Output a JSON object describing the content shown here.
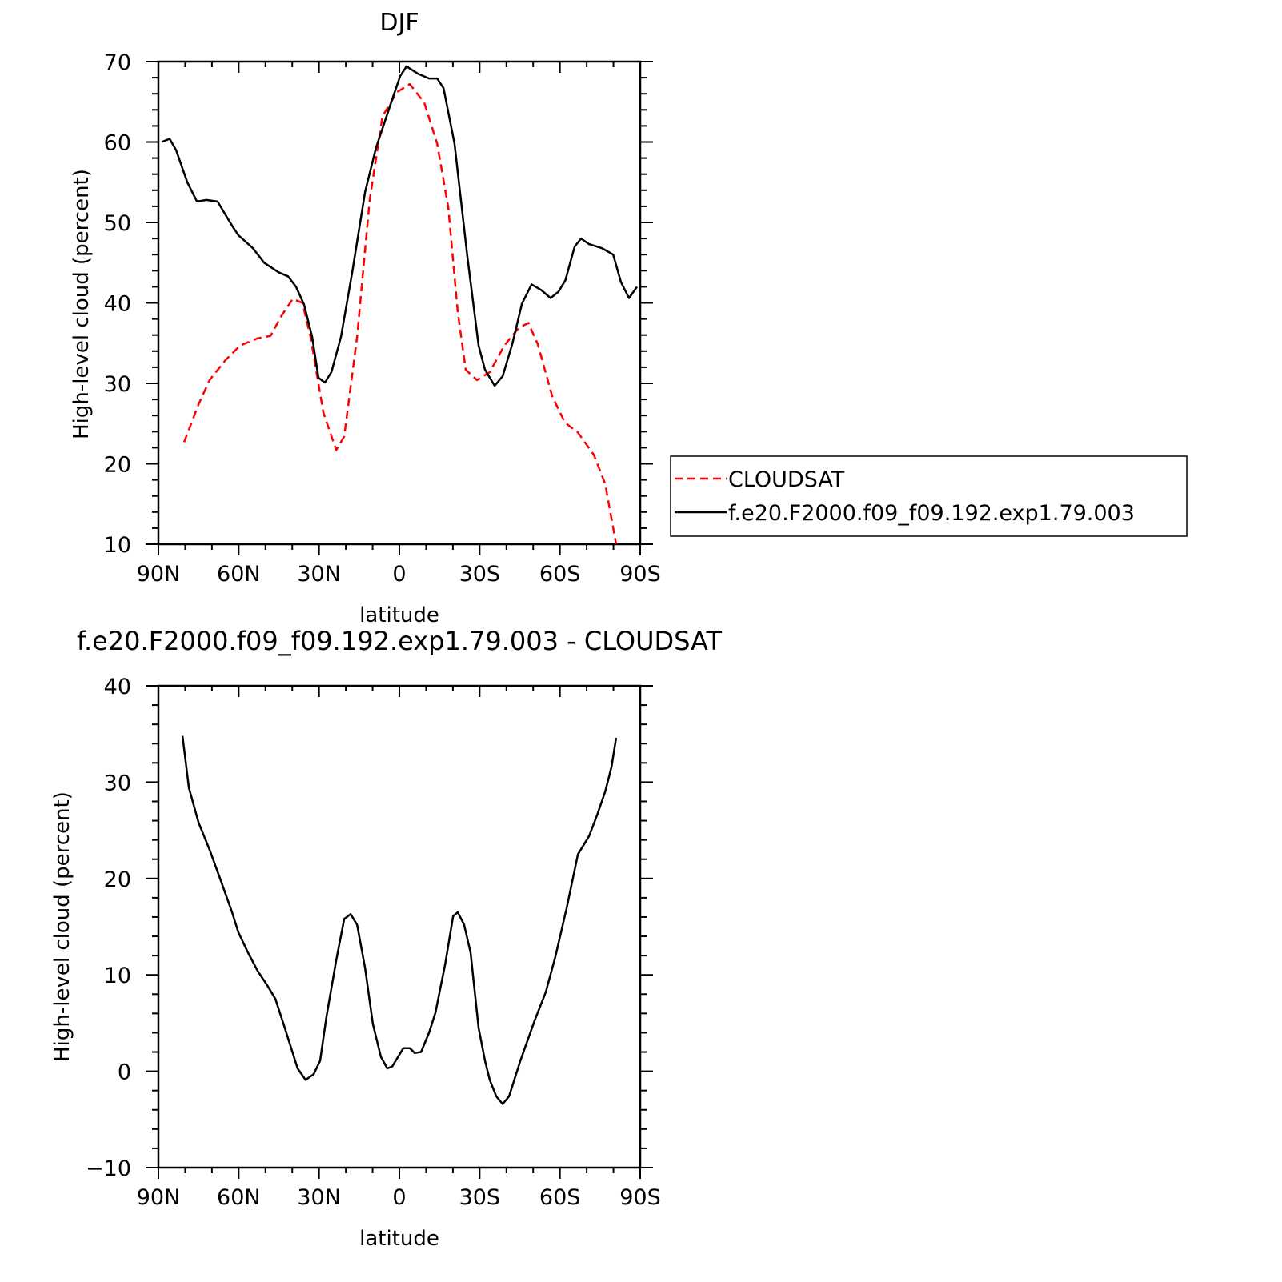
{
  "chart_data": [
    {
      "type": "line",
      "title": "DJF",
      "xlabel": "latitude",
      "ylabel": "High-level cloud (percent)",
      "xlim": [
        90,
        -90
      ],
      "ylim": [
        10,
        70
      ],
      "x_ticks": [
        90,
        60,
        30,
        0,
        -30,
        -60,
        -90
      ],
      "x_tick_labels": [
        "90N",
        "60N",
        "30N",
        "0",
        "30S",
        "60S",
        "90S"
      ],
      "y_ticks": [
        10,
        20,
        30,
        40,
        50,
        60,
        70
      ],
      "y_tick_labels": [
        "10",
        "20",
        "30",
        "40",
        "50",
        "60",
        "70"
      ],
      "grid": false,
      "legend_placement": "right",
      "series": [
        {
          "name": "CLOUDSAT",
          "color": "#ff0000",
          "dash": "dashed",
          "x": [
            80.4,
            75.0,
            70.9,
            64.9,
            59.5,
            52.9,
            48.1,
            44.0,
            39.8,
            36.2,
            33.2,
            28.4,
            23.6,
            20.6,
            15.8,
            11.1,
            6.3,
            0.9,
            -3.9,
            -9.3,
            -14.1,
            -18.3,
            -21.8,
            -24.8,
            -29.0,
            -33.8,
            -39.2,
            -44.6,
            -48.2,
            -51.7,
            -57.1,
            -61.9,
            -66.7,
            -72.7,
            -76.9,
            -81.0
          ],
          "y": [
            22.7,
            27.4,
            30.4,
            32.9,
            34.7,
            35.6,
            35.9,
            38.4,
            40.5,
            40.0,
            35.8,
            26.4,
            21.7,
            23.4,
            35.8,
            52.8,
            63.2,
            66.2,
            67.2,
            64.9,
            59.8,
            51.8,
            38.9,
            31.7,
            30.4,
            31.4,
            34.7,
            36.9,
            37.5,
            34.9,
            28.4,
            25.1,
            23.9,
            21.1,
            17.5,
            10.0
          ]
        },
        {
          "name": "f.e20.F2000.f09_f09.192.exp1.79.003",
          "color": "#000000",
          "dash": "solid",
          "x": [
            88.8,
            85.8,
            83.4,
            79.2,
            75.6,
            72.1,
            67.9,
            62.5,
            60.1,
            54.7,
            50.5,
            45.1,
            41.6,
            38.6,
            35.6,
            32.6,
            30.2,
            27.8,
            25.4,
            21.8,
            17.6,
            12.8,
            8.7,
            3.3,
            -0.3,
            -2.7,
            -6.9,
            -11.1,
            -14.1,
            -16.5,
            -20.6,
            -25.4,
            -29.6,
            -32.0,
            -35.6,
            -38.6,
            -42.2,
            -45.8,
            -49.4,
            -53.0,
            -56.5,
            -59.5,
            -62.0,
            -65.5,
            -67.9,
            -70.9,
            -75.7,
            -79.9,
            -82.8,
            -85.8,
            -88.8
          ],
          "y": [
            60.0,
            60.4,
            59.0,
            55.0,
            52.6,
            52.8,
            52.6,
            49.6,
            48.4,
            46.8,
            45.0,
            43.8,
            43.3,
            42.0,
            39.8,
            35.8,
            30.7,
            30.1,
            31.4,
            35.8,
            43.8,
            53.8,
            59.3,
            64.7,
            68.2,
            69.4,
            68.5,
            67.9,
            67.9,
            66.7,
            59.8,
            45.8,
            34.7,
            31.7,
            29.7,
            30.9,
            34.9,
            39.9,
            42.3,
            41.6,
            40.6,
            41.4,
            42.8,
            47.0,
            48.0,
            47.3,
            46.8,
            46.0,
            42.6,
            40.6,
            42.0
          ]
        }
      ]
    },
    {
      "type": "line",
      "title": "f.e20.F2000.f09_f09.192.exp1.79.003 - CLOUDSAT",
      "xlabel": "latitude",
      "ylabel": "High-level cloud (percent)",
      "xlim": [
        90,
        -90
      ],
      "ylim": [
        -10,
        40
      ],
      "x_ticks": [
        90,
        60,
        30,
        0,
        -30,
        -60,
        -90
      ],
      "x_tick_labels": [
        "90N",
        "60N",
        "30N",
        "0",
        "30S",
        "60S",
        "90S"
      ],
      "y_ticks": [
        -10,
        0,
        10,
        20,
        30,
        40
      ],
      "y_tick_labels": [
        "−10",
        "0",
        "10",
        "20",
        "30",
        "40"
      ],
      "grid": false,
      "series": [
        {
          "color": "#000000",
          "dash": "solid",
          "x": [
            81.0,
            78.6,
            75.0,
            70.9,
            66.7,
            62.5,
            60.1,
            56.5,
            52.9,
            49.3,
            46.3,
            42.8,
            38.0,
            35.0,
            32.0,
            29.6,
            27.2,
            23.6,
            20.6,
            18.2,
            15.8,
            12.8,
            9.9,
            6.9,
            4.5,
            2.7,
            -1.5,
            -3.9,
            -5.7,
            -8.1,
            -11.1,
            -13.5,
            -17.1,
            -20.1,
            -21.8,
            -24.2,
            -26.6,
            -29.6,
            -32.0,
            -33.8,
            -36.2,
            -38.6,
            -41.0,
            -45.2,
            -50.6,
            -54.7,
            -58.3,
            -62.5,
            -66.7,
            -70.9,
            -73.9,
            -76.9,
            -79.3,
            -81.0
          ],
          "y": [
            34.8,
            29.4,
            25.8,
            23.0,
            19.8,
            16.5,
            14.4,
            12.3,
            10.4,
            8.9,
            7.5,
            4.5,
            0.3,
            -0.9,
            -0.3,
            1.1,
            5.7,
            11.5,
            15.8,
            16.3,
            15.2,
            10.7,
            4.9,
            1.5,
            0.3,
            0.5,
            2.4,
            2.4,
            1.9,
            2.0,
            4.0,
            6.1,
            11.1,
            16.1,
            16.5,
            15.2,
            12.3,
            4.5,
            1.1,
            -0.9,
            -2.6,
            -3.4,
            -2.6,
            1.1,
            5.3,
            8.2,
            11.9,
            16.9,
            22.5,
            24.4,
            26.6,
            29.0,
            31.6,
            34.6
          ]
        }
      ]
    }
  ]
}
